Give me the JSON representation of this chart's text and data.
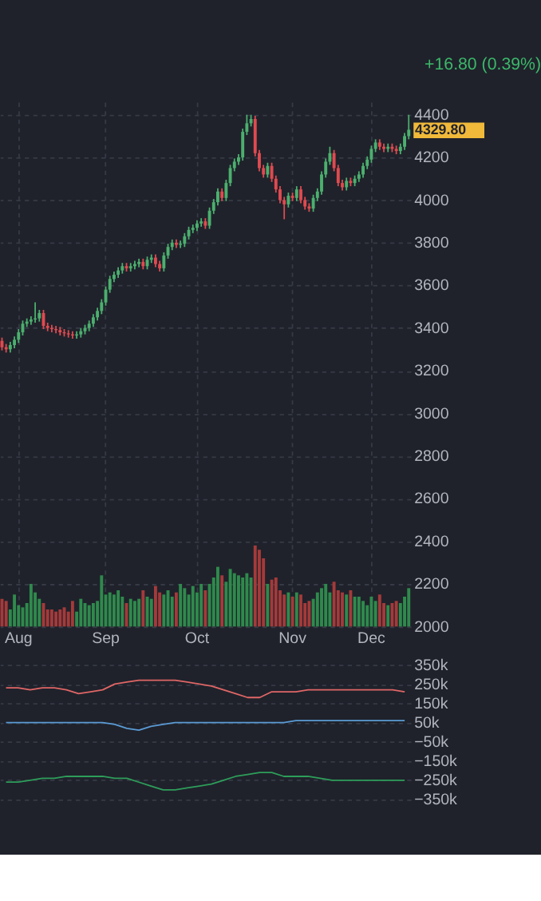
{
  "chart_data": [
    {
      "type": "candlestick",
      "title": "+16.80 (0.39%)",
      "annotations": [
        "4329.80"
      ],
      "categories": [
        null,
        null,
        null,
        null,
        "Aug",
        null,
        null,
        null,
        null,
        null,
        null,
        null,
        null,
        null,
        null,
        null,
        null,
        null,
        null,
        null,
        null,
        null,
        null,
        null,
        null,
        "Sep",
        null,
        null,
        null,
        null,
        null,
        null,
        null,
        null,
        null,
        null,
        null,
        null,
        null,
        null,
        null,
        null,
        null,
        null,
        null,
        null,
        null,
        "Oct",
        null,
        null,
        null,
        null,
        null,
        null,
        null,
        null,
        null,
        null,
        null,
        null,
        null,
        null,
        null,
        null,
        null,
        null,
        null,
        null,
        null,
        null,
        "Nov",
        null,
        null,
        null,
        null,
        null,
        null,
        null,
        null,
        null,
        null,
        null,
        null,
        null,
        null,
        null,
        null,
        null,
        null,
        "Dec",
        null,
        null,
        null,
        null,
        null,
        null,
        null,
        null,
        null
      ],
      "ohlc": [
        [
          3340,
          3355,
          3295,
          3310
        ],
        [
          3310,
          3325,
          3285,
          3300
        ],
        [
          3300,
          3335,
          3285,
          3320
        ],
        [
          3320,
          3360,
          3305,
          3345
        ],
        [
          3345,
          3395,
          3330,
          3380
        ],
        [
          3380,
          3435,
          3365,
          3420
        ],
        [
          3420,
          3445,
          3405,
          3430
        ],
        [
          3430,
          3455,
          3415,
          3440
        ],
        [
          3440,
          3520,
          3425,
          3445
        ],
        [
          3445,
          3485,
          3430,
          3470
        ],
        [
          3470,
          3485,
          3395,
          3410
        ],
        [
          3410,
          3425,
          3385,
          3400
        ],
        [
          3400,
          3415,
          3380,
          3395
        ],
        [
          3395,
          3410,
          3375,
          3390
        ],
        [
          3390,
          3405,
          3365,
          3380
        ],
        [
          3380,
          3395,
          3360,
          3375
        ],
        [
          3375,
          3390,
          3355,
          3370
        ],
        [
          3370,
          3385,
          3350,
          3365
        ],
        [
          3365,
          3385,
          3350,
          3370
        ],
        [
          3370,
          3400,
          3355,
          3385
        ],
        [
          3385,
          3415,
          3370,
          3400
        ],
        [
          3400,
          3435,
          3385,
          3420
        ],
        [
          3420,
          3465,
          3405,
          3450
        ],
        [
          3450,
          3495,
          3435,
          3480
        ],
        [
          3480,
          3535,
          3465,
          3520
        ],
        [
          3520,
          3595,
          3505,
          3580
        ],
        [
          3580,
          3645,
          3565,
          3630
        ],
        [
          3630,
          3665,
          3615,
          3650
        ],
        [
          3650,
          3685,
          3635,
          3670
        ],
        [
          3670,
          3705,
          3655,
          3690
        ],
        [
          3690,
          3705,
          3665,
          3680
        ],
        [
          3680,
          3705,
          3665,
          3690
        ],
        [
          3690,
          3715,
          3675,
          3700
        ],
        [
          3700,
          3725,
          3685,
          3710
        ],
        [
          3710,
          3725,
          3675,
          3690
        ],
        [
          3690,
          3735,
          3675,
          3720
        ],
        [
          3720,
          3745,
          3705,
          3730
        ],
        [
          3730,
          3745,
          3685,
          3700
        ],
        [
          3700,
          3715,
          3665,
          3680
        ],
        [
          3680,
          3755,
          3665,
          3740
        ],
        [
          3740,
          3795,
          3725,
          3780
        ],
        [
          3780,
          3815,
          3765,
          3800
        ],
        [
          3800,
          3815,
          3775,
          3790
        ],
        [
          3790,
          3810,
          3775,
          3795
        ],
        [
          3795,
          3845,
          3780,
          3830
        ],
        [
          3830,
          3875,
          3815,
          3860
        ],
        [
          3860,
          3885,
          3845,
          3870
        ],
        [
          3870,
          3905,
          3855,
          3890
        ],
        [
          3890,
          3915,
          3875,
          3900
        ],
        [
          3900,
          3915,
          3865,
          3880
        ],
        [
          3880,
          3965,
          3865,
          3950
        ],
        [
          3950,
          4005,
          3935,
          3990
        ],
        [
          3990,
          4055,
          3975,
          4040
        ],
        [
          4040,
          4055,
          3995,
          4010
        ],
        [
          4010,
          4095,
          3995,
          4080
        ],
        [
          4080,
          4165,
          4065,
          4150
        ],
        [
          4150,
          4195,
          4135,
          4180
        ],
        [
          4180,
          4215,
          4165,
          4200
        ],
        [
          4200,
          4335,
          4185,
          4320
        ],
        [
          4320,
          4400,
          4305,
          4360
        ],
        [
          4360,
          4400,
          4345,
          4380
        ],
        [
          4380,
          4395,
          4205,
          4220
        ],
        [
          4220,
          4235,
          4135,
          4150
        ],
        [
          4150,
          4165,
          4105,
          4120
        ],
        [
          4120,
          4175,
          4105,
          4160
        ],
        [
          4160,
          4175,
          4085,
          4100
        ],
        [
          4100,
          4115,
          4035,
          4050
        ],
        [
          4050,
          4065,
          3985,
          4000
        ],
        [
          4000,
          4015,
          3910,
          3980
        ],
        [
          3980,
          4035,
          3965,
          4020
        ],
        [
          4020,
          4035,
          3995,
          4010
        ],
        [
          4010,
          4065,
          3995,
          4050
        ],
        [
          4050,
          4065,
          3985,
          4000
        ],
        [
          4000,
          4015,
          3955,
          3970
        ],
        [
          3970,
          3985,
          3945,
          3960
        ],
        [
          3960,
          4025,
          3945,
          4010
        ],
        [
          4010,
          4055,
          3995,
          4040
        ],
        [
          4040,
          4135,
          4025,
          4120
        ],
        [
          4120,
          4195,
          4105,
          4180
        ],
        [
          4180,
          4250,
          4165,
          4220
        ],
        [
          4220,
          4235,
          4135,
          4150
        ],
        [
          4150,
          4165,
          4065,
          4080
        ],
        [
          4080,
          4095,
          4045,
          4060
        ],
        [
          4060,
          4105,
          4045,
          4090
        ],
        [
          4090,
          4105,
          4065,
          4080
        ],
        [
          4080,
          4115,
          4065,
          4100
        ],
        [
          4100,
          4135,
          4085,
          4120
        ],
        [
          4120,
          4175,
          4105,
          4160
        ],
        [
          4160,
          4205,
          4145,
          4190
        ],
        [
          4190,
          4255,
          4175,
          4240
        ],
        [
          4240,
          4285,
          4225,
          4270
        ],
        [
          4270,
          4285,
          4235,
          4250
        ],
        [
          4250,
          4265,
          4225,
          4240
        ],
        [
          4240,
          4265,
          4225,
          4250
        ],
        [
          4250,
          4265,
          4225,
          4240
        ],
        [
          4240,
          4255,
          4215,
          4230
        ],
        [
          4230,
          4265,
          4215,
          4250
        ],
        [
          4250,
          4315,
          4235,
          4300
        ],
        [
          4300,
          4400,
          4285,
          4329.8
        ]
      ],
      "colors": [
        "#e04a50",
        "#e04a50",
        "#4caf6e",
        "#4caf6e",
        "#4caf6e",
        "#4caf6e",
        "#4caf6e",
        "#4caf6e",
        "#4caf6e",
        "#4caf6e",
        "#e04a50",
        "#e04a50",
        "#e04a50",
        "#e04a50",
        "#e04a50",
        "#e04a50",
        "#e04a50",
        "#e04a50",
        "#4caf6e",
        "#4caf6e",
        "#4caf6e",
        "#4caf6e",
        "#4caf6e",
        "#4caf6e",
        "#4caf6e",
        "#4caf6e",
        "#4caf6e",
        "#4caf6e",
        "#4caf6e",
        "#4caf6e",
        "#e04a50",
        "#4caf6e",
        "#4caf6e",
        "#4caf6e",
        "#e04a50",
        "#4caf6e",
        "#4caf6e",
        "#e04a50",
        "#e04a50",
        "#4caf6e",
        "#4caf6e",
        "#4caf6e",
        "#e04a50",
        "#4caf6e",
        "#4caf6e",
        "#4caf6e",
        "#4caf6e",
        "#4caf6e",
        "#4caf6e",
        "#e04a50",
        "#4caf6e",
        "#4caf6e",
        "#4caf6e",
        "#e04a50",
        "#4caf6e",
        "#4caf6e",
        "#4caf6e",
        "#4caf6e",
        "#4caf6e",
        "#4caf6e",
        "#4caf6e",
        "#e04a50",
        "#e04a50",
        "#e04a50",
        "#4caf6e",
        "#e04a50",
        "#e04a50",
        "#e04a50",
        "#e04a50",
        "#4caf6e",
        "#e04a50",
        "#4caf6e",
        "#e04a50",
        "#e04a50",
        "#e04a50",
        "#4caf6e",
        "#4caf6e",
        "#4caf6e",
        "#4caf6e",
        "#4caf6e",
        "#e04a50",
        "#e04a50",
        "#e04a50",
        "#4caf6e",
        "#e04a50",
        "#4caf6e",
        "#4caf6e",
        "#4caf6e",
        "#4caf6e",
        "#4caf6e",
        "#4caf6e",
        "#e04a50",
        "#e04a50",
        "#4caf6e",
        "#e04a50",
        "#e04a50",
        "#4caf6e",
        "#4caf6e",
        "#4caf6e"
      ],
      "series": [
        {
          "type": "bar",
          "values": [
            2130,
            2120,
            2080,
            2150,
            2100,
            2090,
            2110,
            2200,
            2160,
            2130,
            2110,
            2080,
            2080,
            2070,
            2080,
            2090,
            2070,
            2120,
            2070,
            2130,
            2110,
            2100,
            2110,
            2120,
            2240,
            2150,
            2160,
            2150,
            2170,
            2140,
            2110,
            2130,
            2120,
            2130,
            2170,
            2140,
            2130,
            2190,
            2160,
            2150,
            2170,
            2140,
            2160,
            2200,
            2180,
            2150,
            2190,
            2160,
            2200,
            2170,
            2200,
            2230,
            2280,
            2240,
            2210,
            2270,
            2250,
            2240,
            2230,
            2250,
            2230,
            2380,
            2360,
            2320,
            2200,
            2220,
            2230,
            2170,
            2150,
            2160,
            2140,
            2160,
            2150,
            2110,
            2120,
            2130,
            2160,
            2180,
            2200,
            2160,
            2210,
            2170,
            2160,
            2150,
            2170,
            2140,
            2140,
            2120,
            2100,
            2140,
            2120,
            2150,
            2110,
            2100,
            2110,
            2120,
            2110,
            2140,
            2180
          ],
          "colors": [
            "#a53a3a",
            "#a53a3a",
            "#2f8a4c",
            "#2f8a4c",
            "#2f8a4c",
            "#2f8a4c",
            "#2f8a4c",
            "#2f8a4c",
            "#2f8a4c",
            "#2f8a4c",
            "#a53a3a",
            "#a53a3a",
            "#a53a3a",
            "#a53a3a",
            "#a53a3a",
            "#a53a3a",
            "#a53a3a",
            "#a53a3a",
            "#2f8a4c",
            "#2f8a4c",
            "#2f8a4c",
            "#2f8a4c",
            "#2f8a4c",
            "#2f8a4c",
            "#2f8a4c",
            "#2f8a4c",
            "#2f8a4c",
            "#2f8a4c",
            "#2f8a4c",
            "#2f8a4c",
            "#a53a3a",
            "#2f8a4c",
            "#2f8a4c",
            "#2f8a4c",
            "#a53a3a",
            "#2f8a4c",
            "#2f8a4c",
            "#a53a3a",
            "#a53a3a",
            "#2f8a4c",
            "#2f8a4c",
            "#2f8a4c",
            "#a53a3a",
            "#2f8a4c",
            "#2f8a4c",
            "#2f8a4c",
            "#2f8a4c",
            "#2f8a4c",
            "#2f8a4c",
            "#a53a3a",
            "#2f8a4c",
            "#2f8a4c",
            "#2f8a4c",
            "#a53a3a",
            "#2f8a4c",
            "#2f8a4c",
            "#2f8a4c",
            "#2f8a4c",
            "#2f8a4c",
            "#2f8a4c",
            "#2f8a4c",
            "#a53a3a",
            "#a53a3a",
            "#a53a3a",
            "#2f8a4c",
            "#a53a3a",
            "#a53a3a",
            "#a53a3a",
            "#a53a3a",
            "#2f8a4c",
            "#a53a3a",
            "#2f8a4c",
            "#a53a3a",
            "#a53a3a",
            "#a53a3a",
            "#2f8a4c",
            "#2f8a4c",
            "#2f8a4c",
            "#2f8a4c",
            "#2f8a4c",
            "#a53a3a",
            "#a53a3a",
            "#a53a3a",
            "#2f8a4c",
            "#a53a3a",
            "#2f8a4c",
            "#2f8a4c",
            "#2f8a4c",
            "#2f8a4c",
            "#2f8a4c",
            "#2f8a4c",
            "#a53a3a",
            "#a53a3a",
            "#2f8a4c",
            "#a53a3a",
            "#a53a3a",
            "#2f8a4c",
            "#2f8a4c",
            "#2f8a4c"
          ]
        }
      ],
      "ylim": [
        2000,
        4460
      ],
      "yticks": [
        2000,
        2200,
        2400,
        2600,
        2800,
        3000,
        3200,
        3400,
        3600,
        3800,
        4000,
        4200,
        4400
      ],
      "grid": true
    },
    {
      "type": "line",
      "categories": [
        null,
        null,
        null,
        null,
        null,
        null,
        null,
        null,
        null,
        null,
        null,
        null,
        null,
        null,
        null,
        null,
        null,
        null,
        null,
        null,
        null,
        null,
        null,
        null,
        null,
        null,
        null,
        null,
        null,
        null,
        null,
        null,
        null,
        null
      ],
      "series": [
        {
          "color": "#e06666",
          "values": [
            230000,
            230000,
            220000,
            230000,
            230000,
            220000,
            200000,
            210000,
            220000,
            250000,
            260000,
            270000,
            270000,
            270000,
            270000,
            260000,
            250000,
            240000,
            220000,
            200000,
            180000,
            180000,
            210000,
            210000,
            210000,
            220000,
            220000,
            220000,
            220000,
            220000,
            220000,
            220000,
            220000,
            210000
          ]
        },
        {
          "color": "#5b9bd5",
          "values": [
            50000,
            50000,
            50000,
            50000,
            50000,
            50000,
            50000,
            50000,
            50000,
            40000,
            20000,
            10000,
            30000,
            40000,
            50000,
            50000,
            50000,
            50000,
            50000,
            50000,
            50000,
            50000,
            50000,
            50000,
            60000,
            60000,
            60000,
            60000,
            60000,
            60000,
            60000,
            60000,
            60000,
            60000
          ]
        },
        {
          "color": "#2e9e5a",
          "values": [
            -260000,
            -260000,
            -250000,
            -240000,
            -240000,
            -230000,
            -230000,
            -230000,
            -230000,
            -240000,
            -240000,
            -260000,
            -280000,
            -300000,
            -300000,
            -290000,
            -280000,
            -270000,
            -250000,
            -230000,
            -220000,
            -210000,
            -210000,
            -230000,
            -230000,
            -230000,
            -240000,
            -250000,
            -250000,
            -250000,
            -250000,
            -250000,
            -250000,
            -250000
          ]
        }
      ],
      "ylim": [
        -350000,
        350000
      ],
      "yticks": [
        {
          "value": 350000,
          "label": "350k"
        },
        {
          "value": 250000,
          "label": "250k"
        },
        {
          "value": 150000,
          "label": "150k"
        },
        {
          "value": 50000,
          "label": "50k"
        },
        {
          "value": -50000,
          "label": "−50k"
        },
        {
          "value": -150000,
          "label": "−150k"
        },
        {
          "value": -250000,
          "label": "−250k"
        },
        {
          "value": -350000,
          "label": "−350k"
        }
      ],
      "tick_labels": "y",
      "grid": "y"
    }
  ]
}
